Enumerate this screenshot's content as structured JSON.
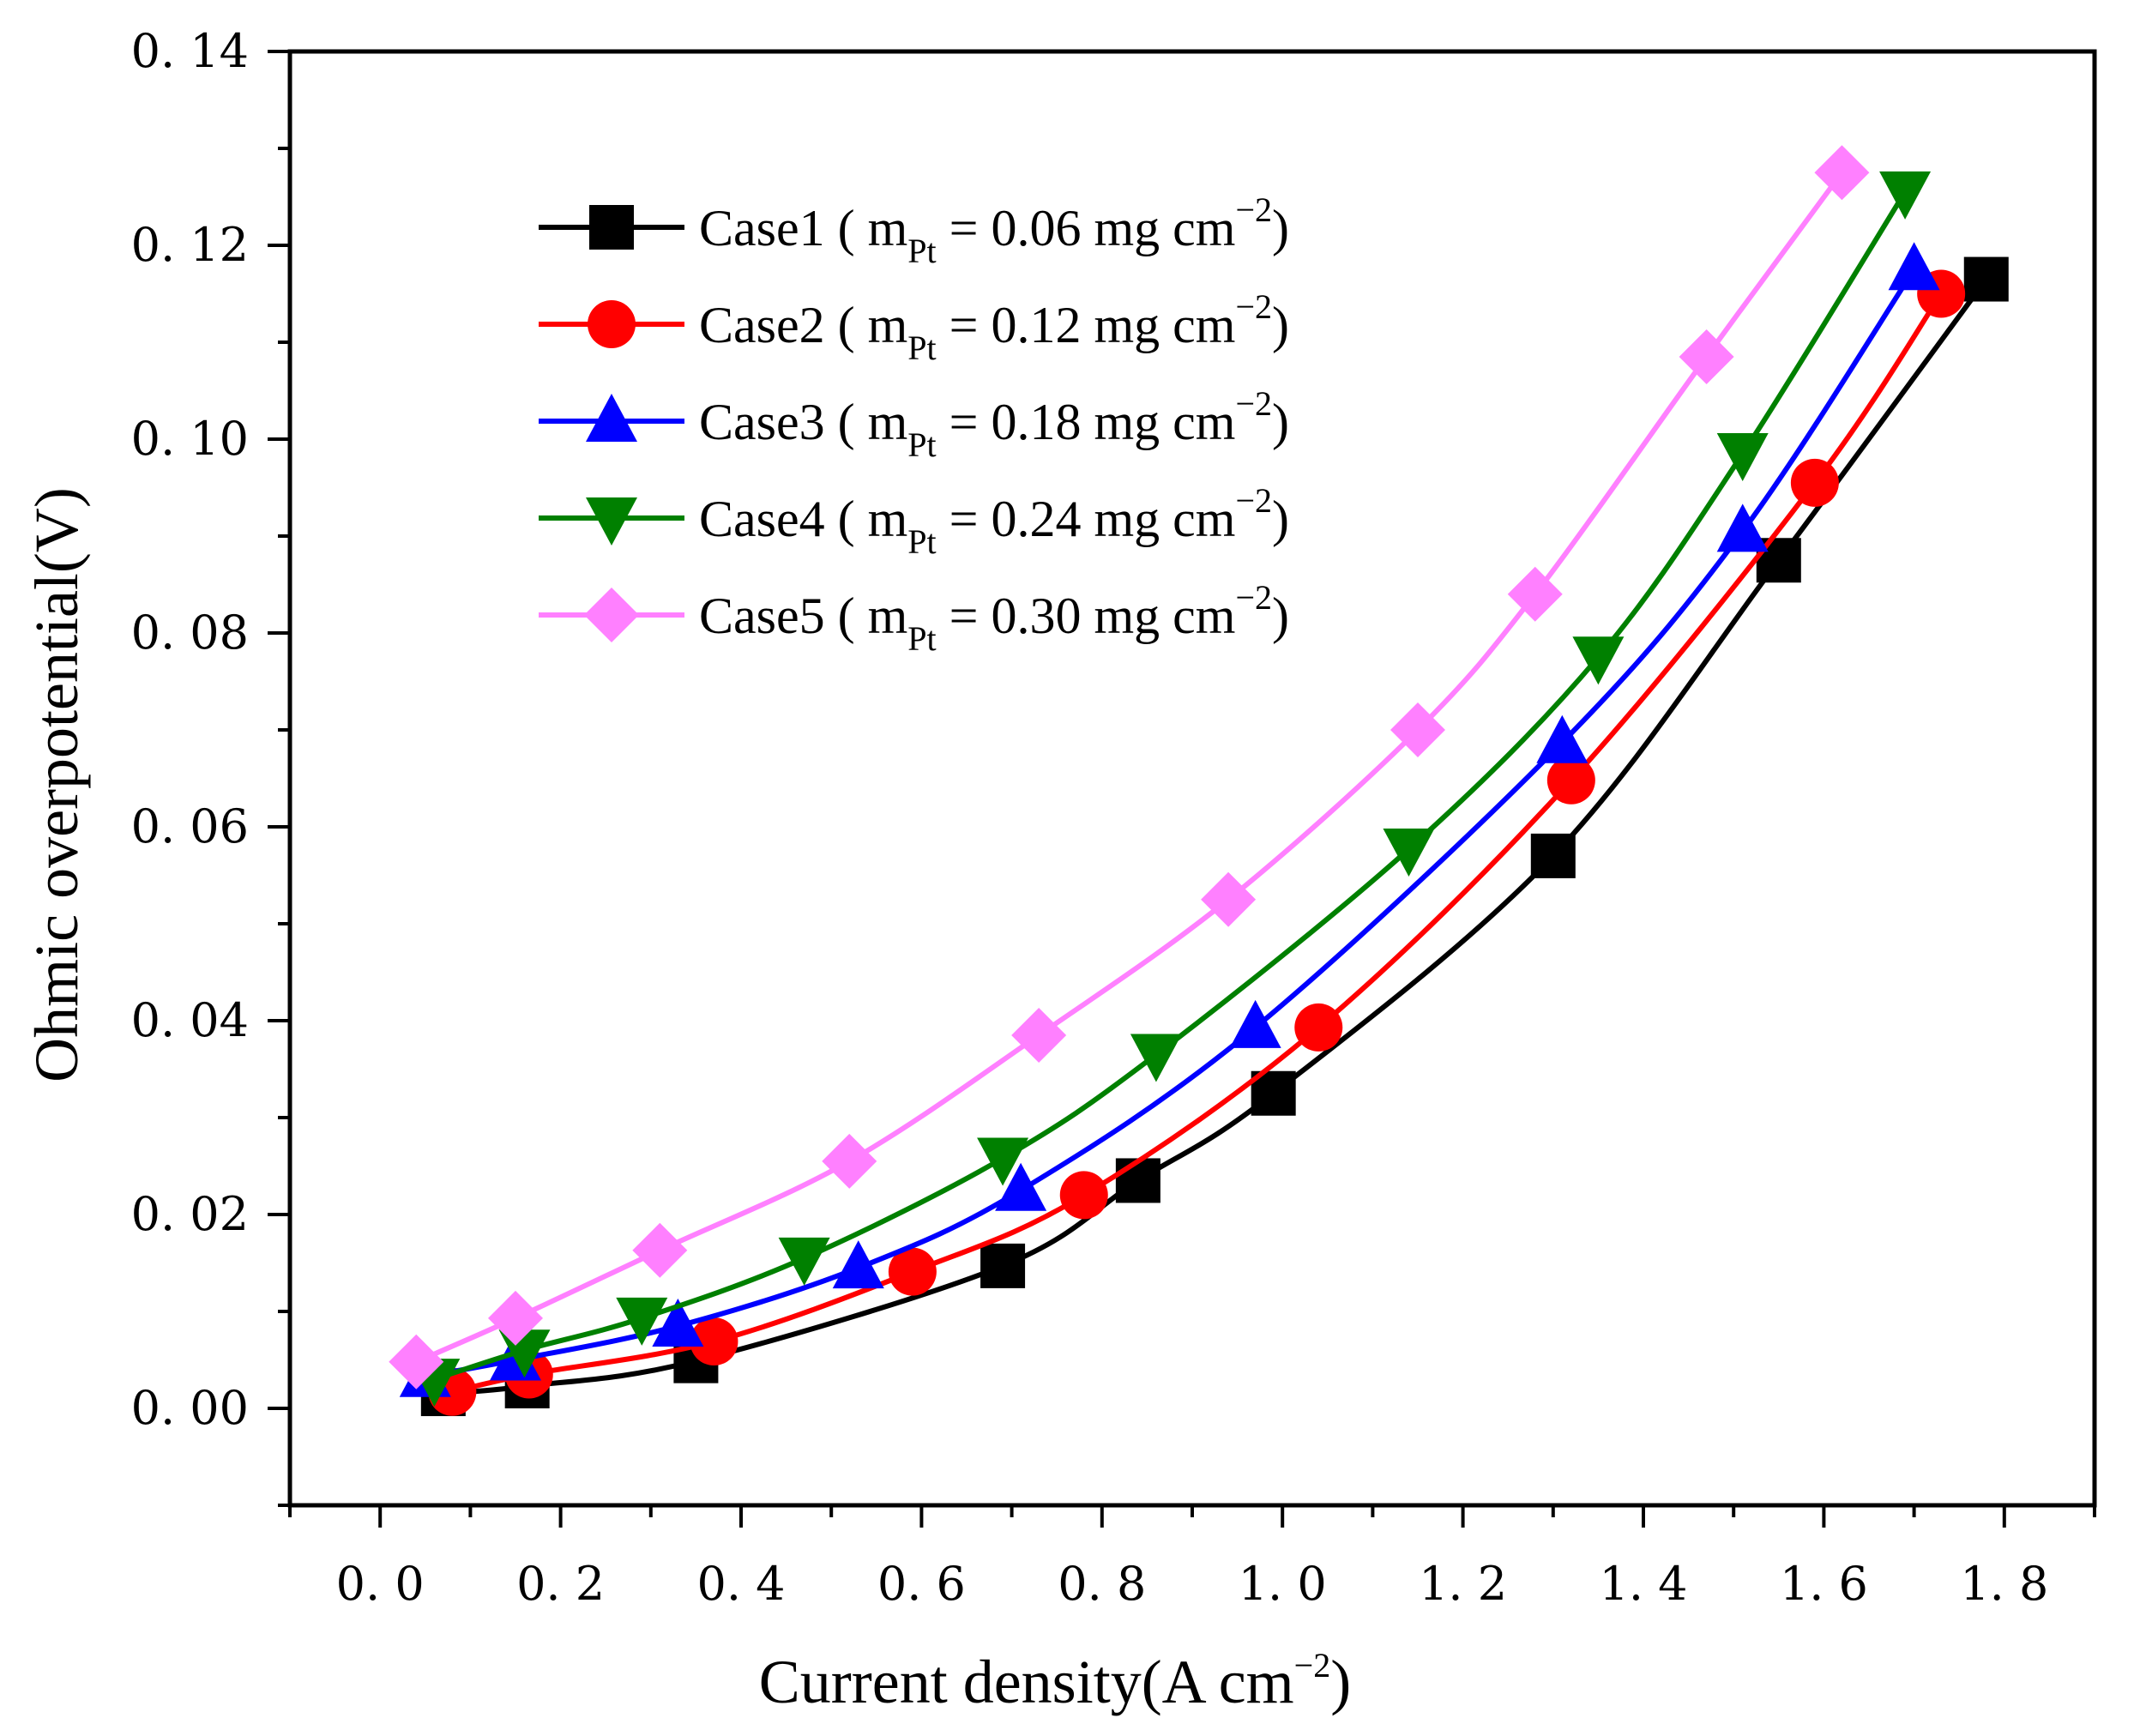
{
  "chart_data": {
    "type": "line",
    "xlabel": {
      "text": "Current density(A cm",
      "sup": "−2",
      "close": ")"
    },
    "ylabel": "Ohmic overpotential(V)",
    "xlim": [
      -0.1,
      1.9
    ],
    "ylim": [
      -0.01,
      0.14
    ],
    "xticks": [
      0.0,
      0.2,
      0.4,
      0.6,
      0.8,
      1.0,
      1.2,
      1.4,
      1.6,
      1.8
    ],
    "xtick_labels": [
      "0. 0",
      "0. 2",
      "0. 4",
      "0. 6",
      "0. 8",
      "1. 0",
      "1. 2",
      "1. 4",
      "1. 6",
      "1. 8"
    ],
    "yticks": [
      0.0,
      0.02,
      0.04,
      0.06,
      0.08,
      0.1,
      0.12,
      0.14
    ],
    "ytick_labels": [
      "0. 00",
      "0. 02",
      "0. 04",
      "0. 06",
      "0. 08",
      "0. 10",
      "0. 12",
      "0. 14"
    ],
    "grid": false,
    "legend_position": "top-left",
    "series": [
      {
        "name": "Case1",
        "label": {
          "prefix": "Case1 ( m",
          "sub": "Pt",
          "mid": " = 0.06 mg cm",
          "sup": "−2",
          "suffix": ")"
        },
        "color": "#000000",
        "marker": "square",
        "x": [
          0.07,
          0.163,
          0.35,
          0.69,
          0.84,
          0.99,
          1.3,
          1.55,
          1.78
        ],
        "y": [
          0.0015,
          0.0023,
          0.0049,
          0.0147,
          0.0235,
          0.0325,
          0.057,
          0.0875,
          0.1165
        ]
      },
      {
        "name": "Case2",
        "label": {
          "prefix": "Case2 ( m",
          "sub": "Pt",
          "mid": " = 0.12 mg cm",
          "sup": "−2",
          "suffix": ")"
        },
        "color": "#ff0000",
        "marker": "circle",
        "x": [
          0.08,
          0.165,
          0.37,
          0.59,
          0.78,
          1.04,
          1.32,
          1.59,
          1.73
        ],
        "y": [
          0.0017,
          0.0035,
          0.0069,
          0.0141,
          0.022,
          0.0393,
          0.0648,
          0.0955,
          0.115
        ]
      },
      {
        "name": "Case3",
        "label": {
          "prefix": "Case3 ( m",
          "sub": "Pt",
          "mid": " = 0.18 mg cm",
          "sup": "−2",
          "suffix": ")"
        },
        "color": "#0000ff",
        "marker": "triangle-up",
        "x": [
          0.05,
          0.15,
          0.33,
          0.53,
          0.71,
          0.97,
          1.31,
          1.51,
          1.7
        ],
        "y": [
          0.0033,
          0.005,
          0.0085,
          0.0145,
          0.0225,
          0.0393,
          0.0687,
          0.0905,
          0.1175
        ]
      },
      {
        "name": "Case4",
        "label": {
          "prefix": "Case4 ( m",
          "sub": "Pt",
          "mid": " = 0.24 mg cm",
          "sup": "−2",
          "suffix": ")"
        },
        "color": "#008000",
        "marker": "triangle-down",
        "x": [
          0.06,
          0.16,
          0.29,
          0.47,
          0.69,
          0.86,
          1.14,
          1.35,
          1.51,
          1.69
        ],
        "y": [
          0.003,
          0.006,
          0.0093,
          0.0155,
          0.0258,
          0.0365,
          0.0577,
          0.0775,
          0.0985,
          0.1255
        ]
      },
      {
        "name": "Case5",
        "label": {
          "prefix": "Case5 ( m",
          "sub": "Pt",
          "mid": " = 0.30 mg cm",
          "sup": "−2",
          "suffix": ")"
        },
        "color": "#ff80ff",
        "marker": "diamond",
        "x": [
          0.04,
          0.15,
          0.31,
          0.52,
          0.73,
          0.94,
          1.15,
          1.28,
          1.47,
          1.62
        ],
        "y": [
          0.0048,
          0.0093,
          0.0163,
          0.0255,
          0.0385,
          0.0525,
          0.07,
          0.084,
          0.1085,
          0.1275
        ]
      }
    ]
  }
}
